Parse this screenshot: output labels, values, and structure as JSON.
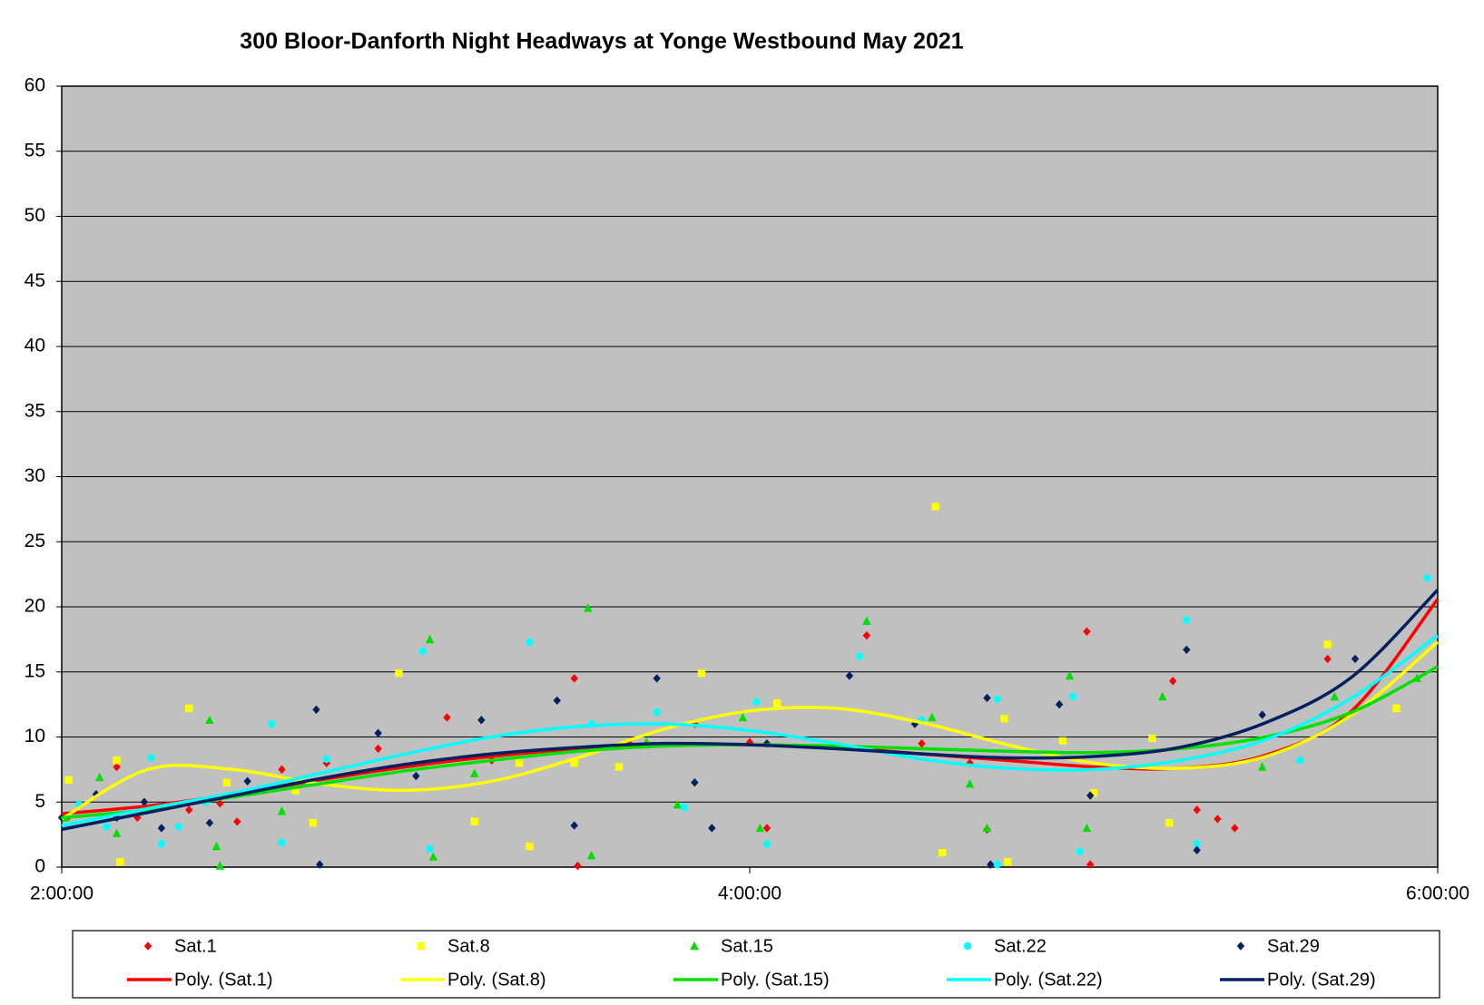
{
  "chart_data": {
    "type": "scatter",
    "title": "300 Bloor-Danforth Night Headways at Yonge Westbound May 2021",
    "xlim": [
      2,
      6
    ],
    "xticks": [
      {
        "value": 2,
        "label": "2:00:00"
      },
      {
        "value": 4,
        "label": "4:00:00"
      },
      {
        "value": 6,
        "label": "6:00:00"
      }
    ],
    "ylim": [
      0,
      60
    ],
    "yticks": [
      0,
      5,
      10,
      15,
      20,
      25,
      30,
      35,
      40,
      45,
      50,
      55,
      60
    ],
    "grid": true,
    "legend": "bottom",
    "series": [
      {
        "name": "Sat.1",
        "color": "#ff0000",
        "marker": "diamond",
        "x": [
          2.02,
          2.16,
          2.22,
          2.37,
          2.46,
          2.51,
          2.64,
          2.77,
          2.92,
          3.12,
          3.25,
          3.49,
          3.5,
          3.65,
          3.84,
          4.0,
          4.05,
          4.34,
          4.5,
          4.64,
          4.69,
          4.98,
          4.99,
          5.23,
          5.3,
          5.36,
          5.41,
          5.68
        ],
        "values": [
          3.9,
          7.7,
          3.8,
          4.4,
          4.9,
          3.5,
          7.5,
          8.0,
          9.1,
          11.5,
          8.2,
          14.5,
          0.1,
          9.5,
          11.0,
          9.6,
          3.0,
          17.8,
          9.5,
          8.0,
          2.9,
          18.1,
          0.2,
          14.3,
          4.4,
          3.7,
          3.0,
          16.0
        ]
      },
      {
        "name": "Sat.8",
        "color": "#ffff00",
        "marker": "square",
        "x": [
          2.02,
          2.16,
          2.17,
          2.37,
          2.48,
          2.68,
          2.73,
          2.98,
          3.2,
          3.33,
          3.36,
          3.49,
          3.62,
          3.86,
          4.08,
          4.54,
          4.56,
          4.74,
          4.75,
          4.91,
          5.0,
          5.17,
          5.22,
          5.68,
          5.88
        ],
        "values": [
          6.7,
          8.2,
          0.4,
          12.2,
          6.5,
          5.9,
          3.4,
          14.9,
          3.5,
          8.0,
          1.6,
          8.0,
          7.7,
          14.9,
          12.6,
          27.7,
          1.1,
          11.4,
          0.4,
          9.7,
          5.7,
          9.9,
          3.4,
          17.1,
          12.2
        ]
      },
      {
        "name": "Sat.15",
        "color": "#00e000",
        "marker": "triangle",
        "x": [
          2.01,
          2.11,
          2.16,
          2.43,
          2.45,
          2.46,
          2.64,
          3.07,
          3.08,
          3.2,
          3.53,
          3.54,
          3.7,
          3.79,
          3.98,
          4.03,
          4.34,
          4.53,
          4.64,
          4.69,
          4.93,
          4.98,
          5.2,
          5.49,
          5.7,
          5.94
        ],
        "values": [
          3.8,
          6.9,
          2.6,
          11.3,
          1.6,
          0.1,
          4.3,
          17.5,
          0.8,
          7.2,
          19.9,
          0.9,
          9.6,
          4.8,
          11.5,
          3.0,
          18.9,
          11.5,
          6.4,
          3.0,
          14.7,
          3.0,
          13.1,
          7.7,
          13.1,
          14.5
        ]
      },
      {
        "name": "Sat.22",
        "color": "#00ffff",
        "marker": "circle",
        "x": [
          2.05,
          2.13,
          2.26,
          2.29,
          2.34,
          2.42,
          2.61,
          2.64,
          2.77,
          3.05,
          3.07,
          3.36,
          3.54,
          3.73,
          3.81,
          4.02,
          4.05,
          4.32,
          4.5,
          4.72,
          4.72,
          4.94,
          4.96,
          5.27,
          5.3,
          5.6,
          5.97
        ],
        "values": [
          4.8,
          3.1,
          8.4,
          1.8,
          3.1,
          5.0,
          11.0,
          1.9,
          8.3,
          16.6,
          1.4,
          17.3,
          11.0,
          11.9,
          4.6,
          12.7,
          1.8,
          16.2,
          11.3,
          12.9,
          0.2,
          13.1,
          1.2,
          19.0,
          1.8,
          8.2,
          22.2
        ]
      },
      {
        "name": "Sat.29",
        "color": "#002060",
        "marker": "diamond",
        "x": [
          2.0,
          2.1,
          2.16,
          2.24,
          2.29,
          2.43,
          2.54,
          2.74,
          2.75,
          2.92,
          3.03,
          3.22,
          3.44,
          3.49,
          3.73,
          3.84,
          3.89,
          4.05,
          4.29,
          4.48,
          4.69,
          4.7,
          4.9,
          4.99,
          5.27,
          5.3,
          5.49,
          5.76
        ],
        "values": [
          3.8,
          5.6,
          3.8,
          5.0,
          3.0,
          3.4,
          6.6,
          12.1,
          0.2,
          10.3,
          7.0,
          11.3,
          12.8,
          3.2,
          14.5,
          6.5,
          3.0,
          9.5,
          14.7,
          11.0,
          13.0,
          0.2,
          12.5,
          5.5,
          16.7,
          1.3,
          11.7,
          16.0
        ]
      }
    ],
    "trendlines": [
      {
        "name": "Poly. (Sat.1)",
        "color": "#ff0000",
        "x": [
          2,
          2.25,
          2.5,
          2.75,
          3,
          3.25,
          3.5,
          3.75,
          4,
          4.25,
          4.5,
          4.75,
          5,
          5.25,
          5.5,
          5.75,
          6
        ],
        "values": [
          4.1,
          4.7,
          5.6,
          6.7,
          7.7,
          8.5,
          9.1,
          9.4,
          9.4,
          9.2,
          8.7,
          8.2,
          7.7,
          7.6,
          8.6,
          12.0,
          20.6
        ]
      },
      {
        "name": "Poly. (Sat.8)",
        "color": "#ffff00",
        "x": [
          2,
          2.25,
          2.5,
          2.75,
          3,
          3.25,
          3.5,
          3.75,
          4,
          4.25,
          4.5,
          4.75,
          5,
          5.25,
          5.5,
          5.75,
          6
        ],
        "values": [
          3.7,
          7.5,
          7.5,
          6.4,
          5.9,
          6.6,
          8.4,
          10.6,
          12.0,
          12.2,
          11.1,
          9.4,
          8.0,
          7.6,
          8.5,
          11.7,
          17.3
        ]
      },
      {
        "name": "Poly. (Sat.15)",
        "color": "#00e000",
        "x": [
          2,
          2.25,
          2.5,
          2.75,
          3,
          3.25,
          3.5,
          3.75,
          4,
          4.25,
          4.5,
          4.75,
          5,
          5.25,
          5.5,
          5.75,
          6
        ],
        "values": [
          3.8,
          4.4,
          5.4,
          6.4,
          7.4,
          8.2,
          8.9,
          9.3,
          9.4,
          9.3,
          9.1,
          8.9,
          8.8,
          9.1,
          10.0,
          11.9,
          15.4
        ]
      },
      {
        "name": "Poly. (Sat.22)",
        "color": "#00ffff",
        "x": [
          2,
          2.25,
          2.5,
          2.75,
          3,
          3.25,
          3.5,
          3.75,
          4,
          4.25,
          4.5,
          4.75,
          5,
          5.25,
          5.5,
          5.75,
          6
        ],
        "values": [
          3.2,
          4.5,
          5.7,
          7.2,
          8.7,
          10.0,
          10.8,
          11.0,
          10.5,
          9.5,
          8.3,
          7.6,
          7.5,
          8.2,
          9.8,
          13.0,
          17.8
        ]
      },
      {
        "name": "Poly. (Sat.29)",
        "color": "#002060",
        "x": [
          2,
          2.25,
          2.5,
          2.75,
          3,
          3.25,
          3.5,
          3.75,
          4,
          4.25,
          4.5,
          4.75,
          5,
          5.25,
          5.5,
          5.75,
          6
        ],
        "values": [
          2.9,
          4.2,
          5.5,
          6.8,
          7.9,
          8.7,
          9.2,
          9.5,
          9.4,
          9.1,
          8.7,
          8.4,
          8.5,
          9.2,
          11.1,
          14.6,
          21.3
        ]
      }
    ]
  }
}
